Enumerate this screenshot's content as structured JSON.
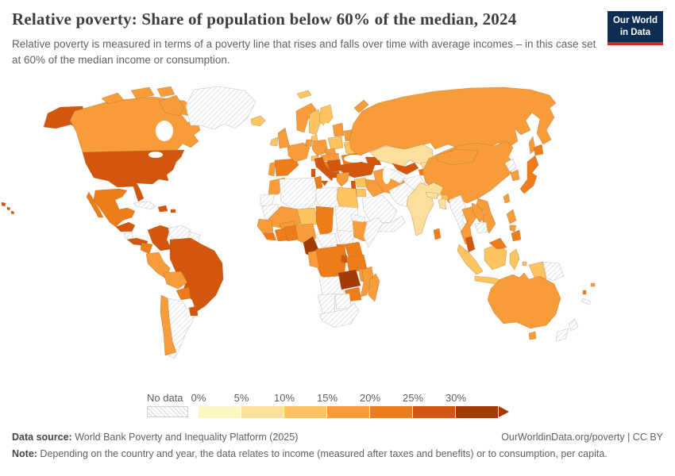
{
  "header": {
    "title": "Relative poverty: Share of population below 60% of the median, 2024",
    "subtitle": "Relative poverty is measured in terms of a poverty line that rises and falls over time with average incomes – in this case set at 60% of the median income or consumption.",
    "logo": {
      "line1": "Our World",
      "line2": "in Data",
      "bg_color": "#0c2e52",
      "accent_color": "#d8232a"
    }
  },
  "legend": {
    "no_data_label": "No data",
    "tick_labels": [
      "0%",
      "5%",
      "10%",
      "15%",
      "20%",
      "25%",
      "30%"
    ]
  },
  "footer": {
    "data_source_label": "Data source:",
    "data_source": " World Bank Poverty and Inequality Platform (2025)",
    "attribution": "OurWorldinData.org/poverty | CC BY",
    "note_label": "Note:",
    "note": " Depending on the country and year, the data relates to income (measured after taxes and benefits) or to consumption, per capita."
  },
  "chart_data": {
    "type": "choropleth_map",
    "title": "Relative poverty: Share of population below 60% of the median, 2024",
    "unit": "share of population below 60% of median income or consumption",
    "legend_position": "bottom",
    "bins": [
      {
        "label": "0-5%",
        "color": "#FEF6C3"
      },
      {
        "label": "5-10%",
        "color": "#FDDF9C"
      },
      {
        "label": "10-15%",
        "color": "#FDC45F"
      },
      {
        "label": "15-20%",
        "color": "#F89B39"
      },
      {
        "label": "20-25%",
        "color": "#EE7C19"
      },
      {
        "label": "25-30%",
        "color": "#D2570D"
      },
      {
        "label": "30%+",
        "color": "#A23B03"
      }
    ],
    "no_data": {
      "label": "No data",
      "style": "diagonal-hatch"
    },
    "countries": {
      "usa": "25-30%",
      "canada": "15-20%",
      "greenland": "no-data",
      "iceland": "10-15%",
      "mexico": "20-25%",
      "guatemala-honduras": "25-30%",
      "nicaragua": "no-data",
      "costa-rica-panama": "25-30%",
      "cuba": "no-data",
      "hispaniola": "25-30%",
      "puerto-rico": "25-30%",
      "colombia": "25-30%",
      "venezuela": "no-data",
      "guyanas": "no-data",
      "ecuador": "20-25%",
      "peru": "15-20%",
      "brazil": "25-30%",
      "bolivia": "15-20%",
      "paraguay": "20-25%",
      "uruguay": "25-30%",
      "chile": "15-20%",
      "argentina": "no-data",
      "portugal": "15-20%",
      "spain": "20-25%",
      "france": "15-20%",
      "united-kingdom": "15-20%",
      "ireland": "10-15%",
      "norway": "15-20%",
      "svalbard": "10-15%",
      "sweden": "10-15%",
      "finland": "10-15%",
      "denmark": "10-15%",
      "germany": "15-20%",
      "benelux": "15-20%",
      "poland": "10-15%",
      "czechia": "15-20%",
      "austria-hungary": "15-20%",
      "switzerland": "10-15%",
      "baltics": "15-20%",
      "belarus": "15-20%",
      "ukraine": "10-15%",
      "romania-moldova": "20-25%",
      "serbia-balkans": "25-30%",
      "croatia-bosnia": "20-25%",
      "bulgaria": "25-30%",
      "albania-macedonia": "25-30%",
      "greece": "15-20%",
      "italy": "25-30%",
      "russia": "15-20%",
      "turkey": "25-30%",
      "syria": "10-15%",
      "israel-lebanon": "25-30%",
      "jordan": "10-15%",
      "iraq": "15-20%",
      "saudi-arabia": "no-data",
      "yemen-oman": "no-data",
      "iran": "15-20%",
      "caucasus": "25-30%",
      "kazakhstan": "5-10%",
      "uzbekistan": "25-30%",
      "turkmenistan": "no-data",
      "kyrgyzstan": "5-10%",
      "tajikistan": "20-25%",
      "afghanistan": "no-data",
      "pakistan": "no-data",
      "india": "5-10%",
      "nepal": "5-10%",
      "bangladesh": "5-10%",
      "bhutan": "10-15%",
      "sri-lanka": "20-25%",
      "china": "15-20%",
      "mongolia": "15-20%",
      "north-korea": "no-data",
      "south-korea": "15-20%",
      "japan": "20-25%",
      "taiwan": "15-20%",
      "myanmar": "no-data",
      "thailand": "15-20%",
      "laos": "15-20%",
      "vietnam": "15-20%",
      "cambodia": "no-data",
      "malaysia": "25-30%",
      "east-malaysia": "20-25%",
      "indonesia": "10-15%",
      "papua-new-guinea": "no-data",
      "philippines": "15-20%",
      "mindanao": "20-25%",
      "australia": "15-20%",
      "new-zealand": "no-data",
      "fiji": "15-20%",
      "vanuatu": "20-25%",
      "new-caledonia": "no-data",
      "morocco": "15-20%",
      "western-sahara": "no-data",
      "algeria": "no-data",
      "tunisia": "20-25%",
      "libya": "no-data",
      "egypt": "10-15%",
      "mauritania": "no-data",
      "mali": "15-20%",
      "niger": "10-15%",
      "chad": "20-25%",
      "sudan": "no-data",
      "senegal-guinea": "15-20%",
      "sierra-leone-liberia": "20-25%",
      "burkina-faso": "15-20%",
      "ivory-coast": "20-25%",
      "ghana-togo-benin": "20-25%",
      "nigeria": "15-20%",
      "cameroon": "30%+",
      "central-african-republic": "no-data",
      "south-sudan": "no-data",
      "ethiopia": "15-20%",
      "eritrea-djibouti": "no-data",
      "somalia": "no-data",
      "kenya": "20-25%",
      "uganda": "20-25%",
      "dr-congo": "20-25%",
      "congo-gabon": "15-20%",
      "rwanda-burundi": "25-30%",
      "tanzania": "20-25%",
      "angola": "no-data",
      "zambia": "30%+",
      "malawi": "15-20%",
      "mozambique": "15-20%",
      "zimbabwe": "20-25%",
      "namibia": "no-data",
      "botswana": "no-data",
      "south-africa": "no-data",
      "madagascar": "15-20%"
    }
  }
}
